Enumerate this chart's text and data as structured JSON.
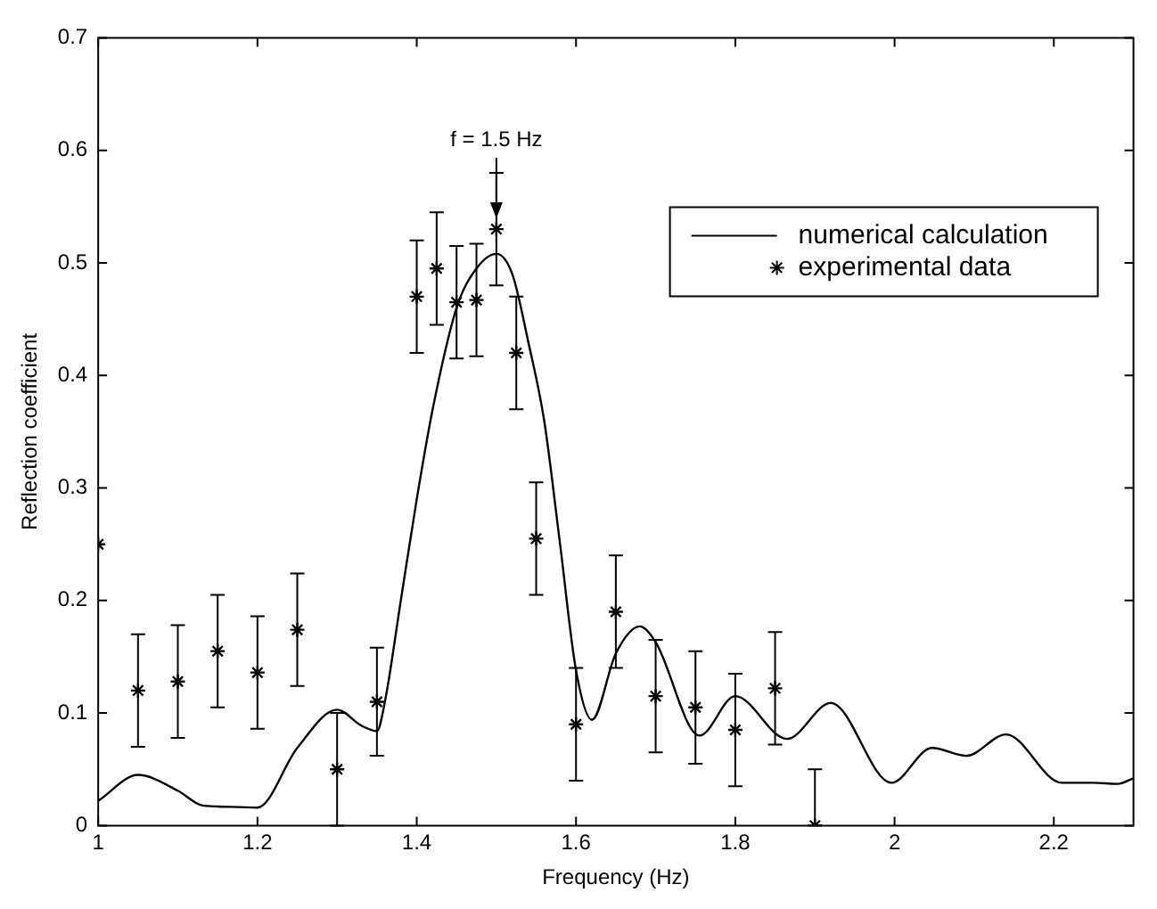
{
  "chart_data": {
    "type": "line",
    "xlabel": "Frequency (Hz)",
    "ylabel": "Reflection coefficient",
    "xlim": [
      1,
      2.3
    ],
    "xticks": [
      1,
      1.2,
      1.4,
      1.6,
      1.8,
      2,
      2.2
    ],
    "ylim": [
      0,
      0.7
    ],
    "yticks": [
      0,
      0.1,
      0.2,
      0.3,
      0.4,
      0.5,
      0.6,
      0.7
    ],
    "grid": false,
    "legend": "top right",
    "annotations": [
      {
        "text": "f = 1.5 Hz",
        "x": 1.5,
        "y": 0.53
      }
    ],
    "series": [
      {
        "name": "numerical calculation",
        "type": "line",
        "color": "#000000",
        "marker": "none",
        "line_style": "solid",
        "x": [
          1,
          1.05,
          1.1,
          1.13,
          1.15,
          1.2,
          1.25,
          1.3,
          1.33,
          1.35,
          1.36,
          1.38,
          1.4,
          1.42,
          1.45,
          1.475,
          1.5,
          1.52,
          1.54,
          1.56,
          1.58,
          1.6,
          1.62,
          1.65,
          1.68,
          1.7,
          1.755,
          1.8,
          1.865,
          1.92,
          1.996,
          2.047,
          2.09,
          2.14,
          2.21,
          2.25,
          2.28,
          2.3
        ],
        "values": [
          0.022,
          0.045,
          0.031,
          0.018,
          0.017,
          0.016,
          0.069,
          0.103,
          0.089,
          0.084,
          0.11,
          0.2,
          0.29,
          0.37,
          0.46,
          0.495,
          0.508,
          0.49,
          0.43,
          0.36,
          0.25,
          0.138,
          0.094,
          0.153,
          0.177,
          0.163,
          0.08,
          0.115,
          0.077,
          0.109,
          0.038,
          0.069,
          0.062,
          0.081,
          0.038,
          0.038,
          0.037,
          0.042
        ]
      },
      {
        "name": "experimental data",
        "type": "scatter",
        "color": "#000000",
        "marker": "cross",
        "x": [
          1,
          1.05,
          1.1,
          1.15,
          1.2,
          1.25,
          1.3,
          1.35,
          1.4,
          1.425,
          1.45,
          1.475,
          1.5,
          1.525,
          1.55,
          1.6,
          1.65,
          1.7,
          1.75,
          1.8,
          1.85,
          1.9
        ],
        "values": [
          0.25,
          0.12,
          0.128,
          0.155,
          0.136,
          0.174,
          0.05,
          0.11,
          0.47,
          0.495,
          0.465,
          0.467,
          0.53,
          0.42,
          0.255,
          0.09,
          0.19,
          0.115,
          0.105,
          0.085,
          0.122,
          0.0
        ],
        "errors": [
          null,
          0.05,
          0.05,
          0.05,
          0.05,
          0.05,
          0.05,
          0.048,
          0.05,
          0.05,
          0.05,
          0.05,
          0.05,
          0.05,
          0.05,
          0.05,
          0.05,
          0.05,
          0.05,
          0.05,
          0.05,
          [
            0,
            0.05
          ]
        ]
      }
    ]
  }
}
